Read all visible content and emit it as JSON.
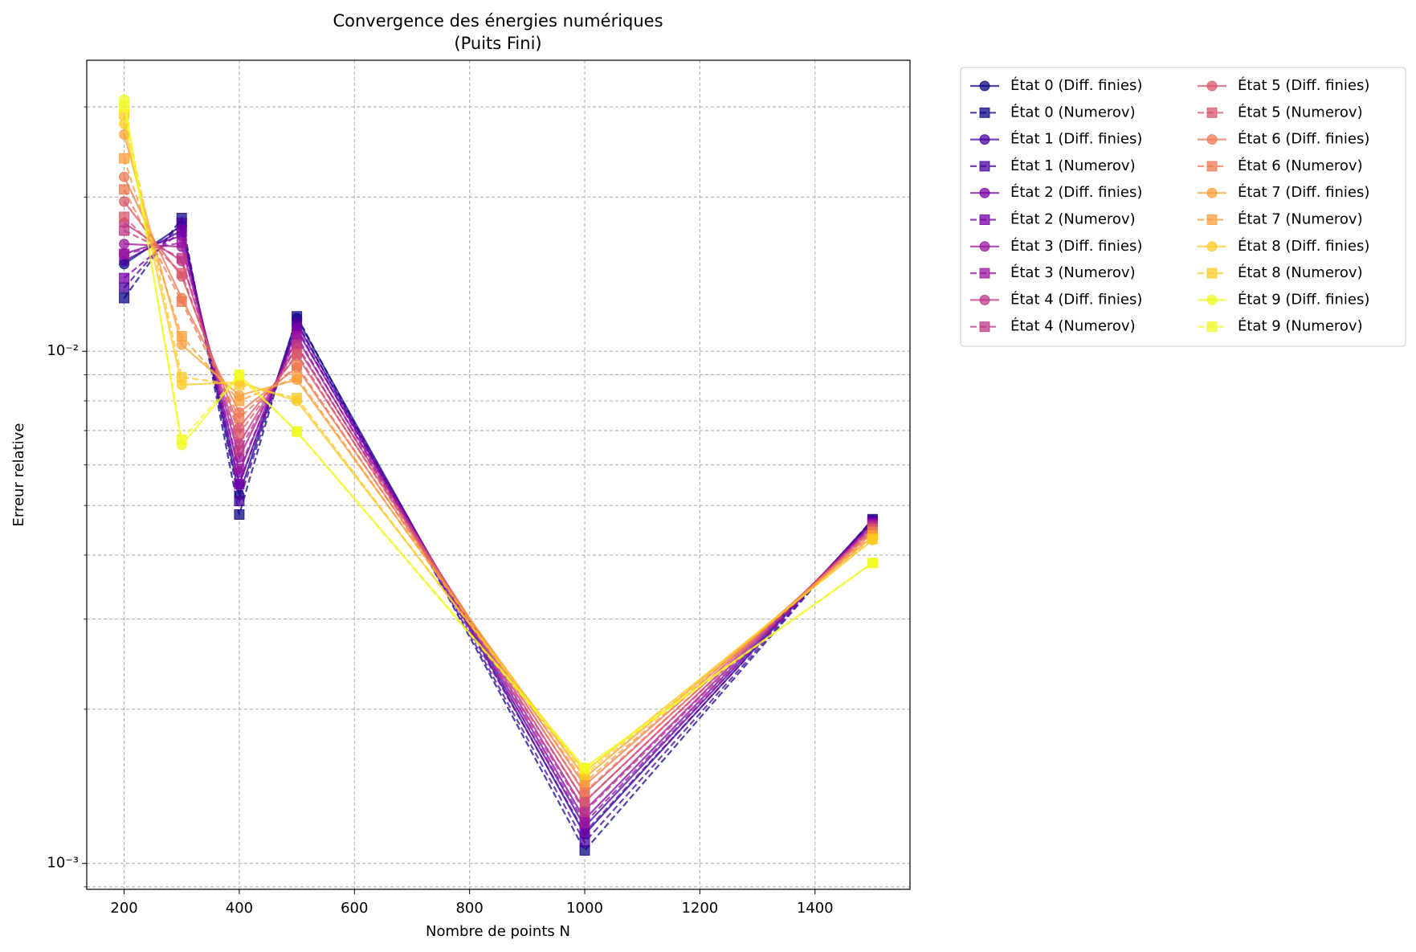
{
  "chart_data": {
    "type": "line",
    "title": "Convergence des énergies numériques",
    "subtitle": "(Puits Fini)",
    "x_label": "Nombre de points N",
    "y_label": "Erreur relative",
    "x": [
      200,
      300,
      400,
      500,
      1000,
      1500
    ],
    "xlim": [
      135,
      1565
    ],
    "xticks": [
      200,
      400,
      600,
      800,
      1000,
      1200,
      1400
    ],
    "ylim": [
      0.00089,
      0.037
    ],
    "yscale": "log",
    "yticks": [
      {
        "value": 0.001,
        "label": "10⁻³"
      },
      {
        "value": 0.01,
        "label": "10⁻²"
      }
    ],
    "yminorticks": [
      0.0009,
      0.002,
      0.003,
      0.004,
      0.005,
      0.006,
      0.007,
      0.008,
      0.009,
      0.02,
      0.03
    ],
    "grid": true,
    "legend_position": "outside-upper-right",
    "legend_columns": 2,
    "series": [
      {
        "name": "État 0 (Diff. finies)",
        "color": "#0d0887",
        "style": "solid",
        "marker": "circle",
        "values": [
          0.0148,
          0.0176,
          0.00524,
          0.0116,
          0.00114,
          0.00468
        ]
      },
      {
        "name": "État 0 (Numerov)",
        "color": "#0d0887",
        "style": "dashed",
        "marker": "square",
        "values": [
          0.0127,
          0.0182,
          0.0048,
          0.0117,
          0.00106,
          0.0047
        ]
      },
      {
        "name": "État 1 (Diff. finies)",
        "color": "#4903a0",
        "style": "solid",
        "marker": "circle",
        "values": [
          0.015,
          0.0172,
          0.0055,
          0.0113,
          0.00118,
          0.00465
        ]
      },
      {
        "name": "État 1 (Numerov)",
        "color": "#4903a0",
        "style": "dashed",
        "marker": "square",
        "values": [
          0.0133,
          0.0178,
          0.0051,
          0.0114,
          0.0011,
          0.00467
        ]
      },
      {
        "name": "État 2 (Diff. finies)",
        "color": "#7501a8",
        "style": "solid",
        "marker": "circle",
        "values": [
          0.0155,
          0.0168,
          0.0058,
          0.011,
          0.00122,
          0.00462
        ]
      },
      {
        "name": "État 2 (Numerov)",
        "color": "#7501a8",
        "style": "dashed",
        "marker": "square",
        "values": [
          0.0139,
          0.0172,
          0.0055,
          0.0111,
          0.00115,
          0.00463
        ]
      },
      {
        "name": "État 3 (Diff. finies)",
        "color": "#9c179e",
        "style": "solid",
        "marker": "circle",
        "values": [
          0.0162,
          0.016,
          0.0062,
          0.0106,
          0.00127,
          0.00458
        ]
      },
      {
        "name": "État 3 (Numerov)",
        "color": "#9c179e",
        "style": "dashed",
        "marker": "square",
        "values": [
          0.0155,
          0.0163,
          0.0059,
          0.0107,
          0.0012,
          0.00459
        ]
      },
      {
        "name": "État 4 (Diff. finies)",
        "color": "#bd3786",
        "style": "solid",
        "marker": "circle",
        "values": [
          0.0178,
          0.015,
          0.0066,
          0.0102,
          0.00132,
          0.00453
        ]
      },
      {
        "name": "État 4 (Numerov)",
        "color": "#bd3786",
        "style": "dashed",
        "marker": "square",
        "values": [
          0.0172,
          0.0152,
          0.0064,
          0.0103,
          0.00126,
          0.00455
        ]
      },
      {
        "name": "État 5 (Diff. finies)",
        "color": "#d8576b",
        "style": "solid",
        "marker": "circle",
        "values": [
          0.0196,
          0.014,
          0.0071,
          0.0098,
          0.00137,
          0.00448
        ]
      },
      {
        "name": "État 5 (Numerov)",
        "color": "#d8576b",
        "style": "dashed",
        "marker": "square",
        "values": [
          0.0183,
          0.0142,
          0.0069,
          0.0099,
          0.00132,
          0.0045
        ]
      },
      {
        "name": "État 6 (Diff. finies)",
        "color": "#ed7953",
        "style": "solid",
        "marker": "circle",
        "values": [
          0.0219,
          0.0127,
          0.0076,
          0.0093,
          0.00142,
          0.00442
        ]
      },
      {
        "name": "État 6 (Numerov)",
        "color": "#ed7953",
        "style": "dashed",
        "marker": "square",
        "values": [
          0.0207,
          0.0125,
          0.0074,
          0.0094,
          0.00138,
          0.00444
        ]
      },
      {
        "name": "État 7 (Diff. finies)",
        "color": "#fb9f3a",
        "style": "solid",
        "marker": "circle",
        "values": [
          0.0265,
          0.0103,
          0.0082,
          0.0088,
          0.00147,
          0.00435
        ]
      },
      {
        "name": "État 7 (Numerov)",
        "color": "#fb9f3a",
        "style": "dashed",
        "marker": "square",
        "values": [
          0.0238,
          0.0107,
          0.008,
          0.0089,
          0.00144,
          0.00437
        ]
      },
      {
        "name": "État 8 (Diff. finies)",
        "color": "#fdca26",
        "style": "solid",
        "marker": "circle",
        "values": [
          0.0278,
          0.0086,
          0.0087,
          0.008,
          0.00151,
          0.00428
        ]
      },
      {
        "name": "État 8 (Numerov)",
        "color": "#fdca26",
        "style": "dashed",
        "marker": "square",
        "values": [
          0.029,
          0.0089,
          0.0086,
          0.0081,
          0.00149,
          0.0043
        ]
      },
      {
        "name": "État 9 (Diff. finies)",
        "color": "#f0f921",
        "style": "solid",
        "marker": "circle",
        "values": [
          0.031,
          0.00656,
          0.00896,
          0.00697,
          0.00154,
          0.00386
        ]
      },
      {
        "name": "État 9 (Numerov)",
        "color": "#f0f921",
        "style": "dashed",
        "marker": "square",
        "values": [
          0.03,
          0.00672,
          0.009,
          0.00697,
          0.00153,
          0.00386
        ]
      }
    ]
  }
}
